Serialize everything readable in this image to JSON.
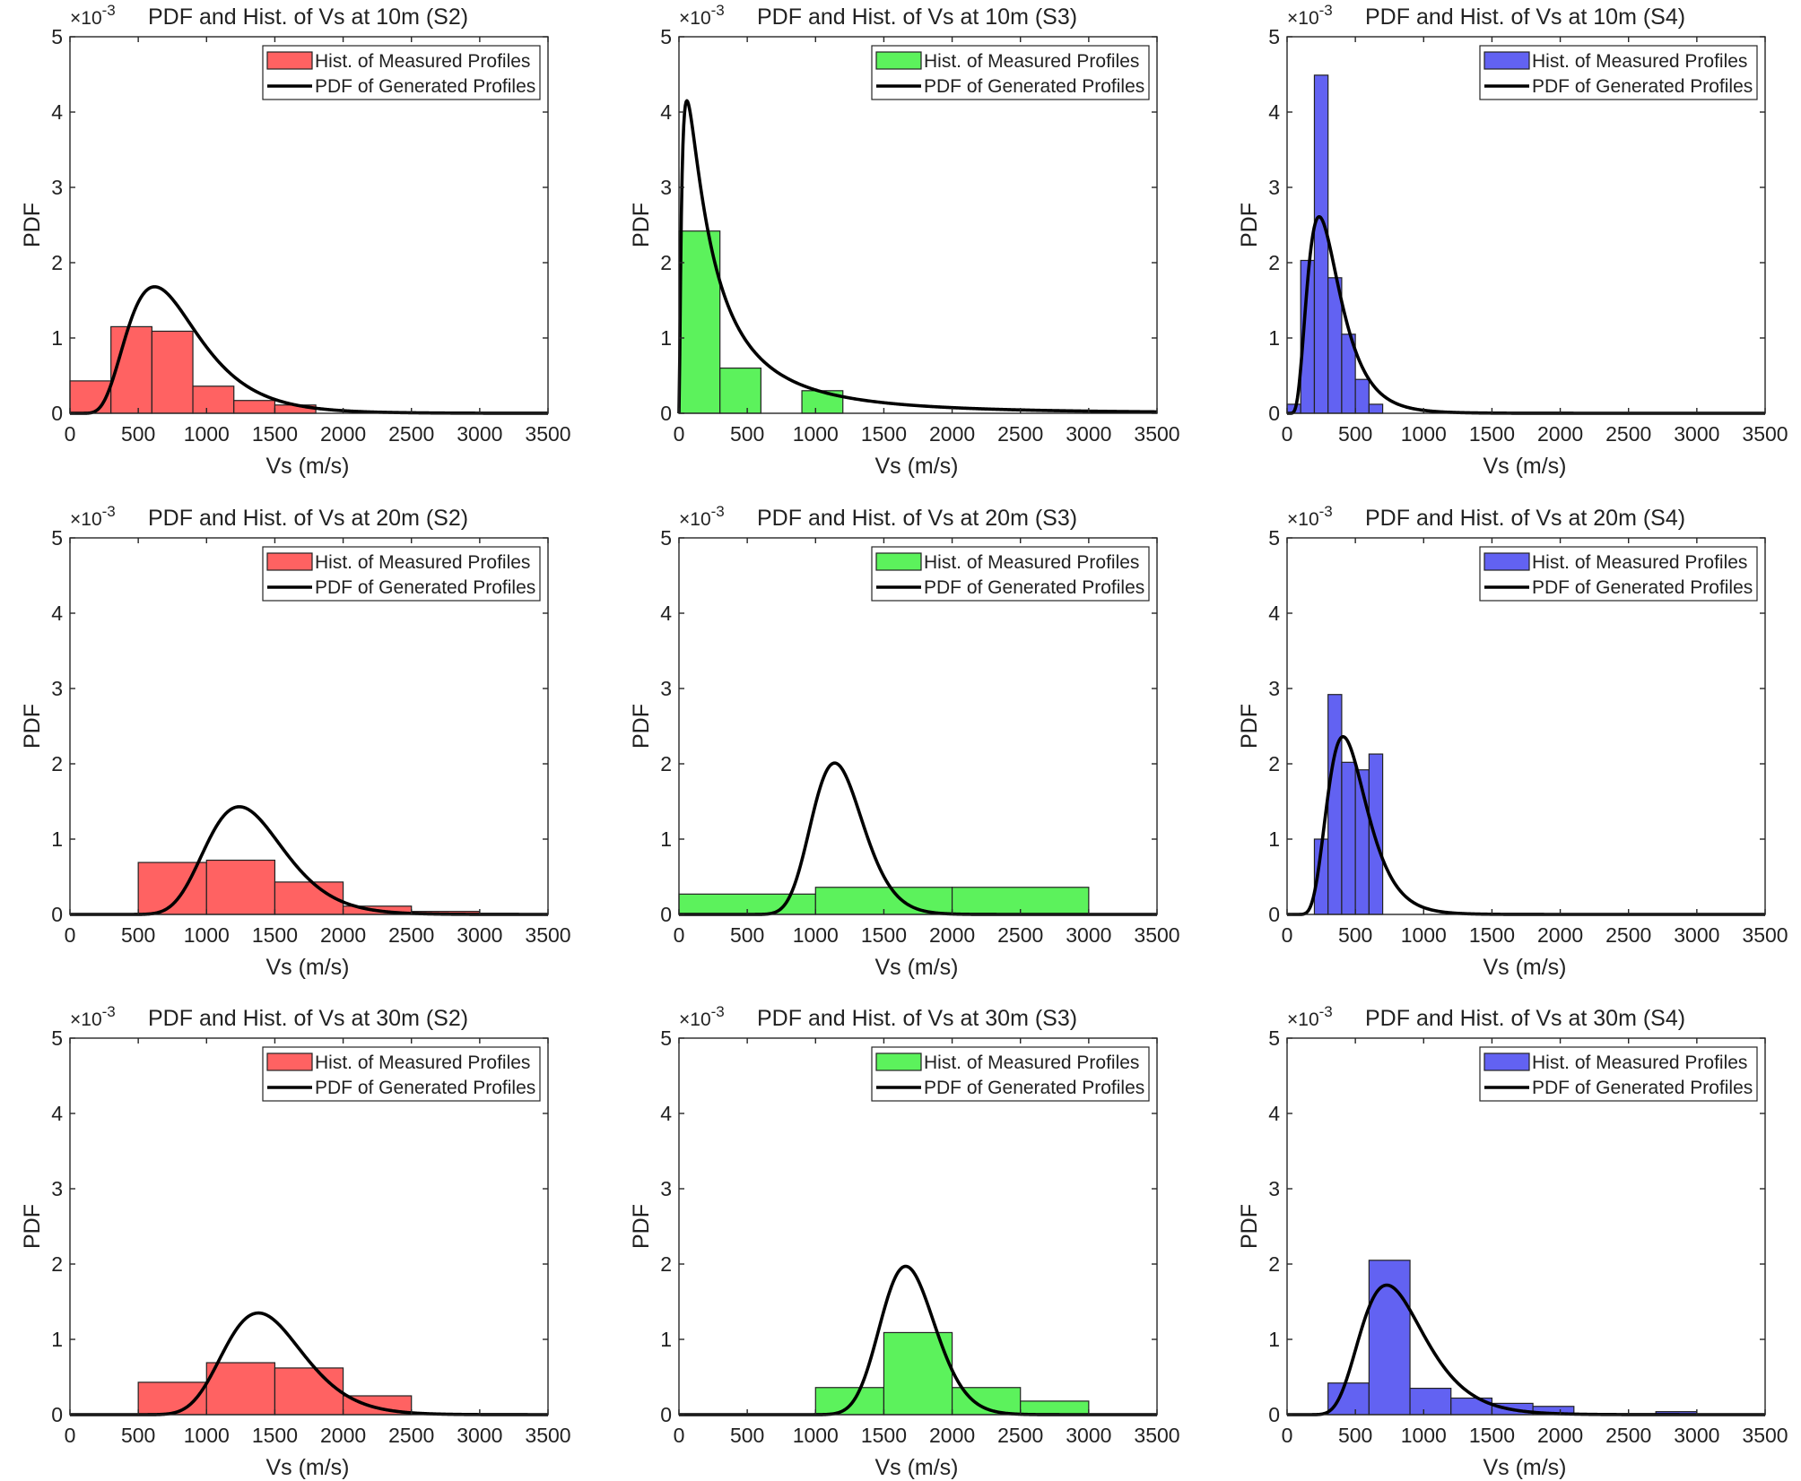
{
  "colors": {
    "S2": "#ff6262",
    "S3": "#5cf25c",
    "S4": "#6262f2",
    "curve": "#000000",
    "axis": "#262626"
  },
  "common": {
    "xlabel": "Vs (m/s)",
    "ylabel": "PDF",
    "exponent_base": "×10",
    "exponent_power": "-3",
    "legend_hist": "Hist. of Measured Profiles",
    "legend_pdf": "PDF of Generated Profiles",
    "legend_position": "top-right",
    "xticks": [
      0,
      500,
      1000,
      1500,
      2000,
      2500,
      3000,
      3500
    ],
    "yticks": [
      0,
      1,
      2,
      3,
      4,
      5
    ],
    "xlim": [
      0,
      3500
    ],
    "ylim": [
      0,
      5
    ]
  },
  "chart_data": [
    {
      "type": "bar+line",
      "title": "PDF and Hist. of Vs at 10m (S2)",
      "site": "S2",
      "xlabel": "Vs (m/s)",
      "ylabel": "PDF (×10^-3)",
      "xlim": [
        0,
        3500
      ],
      "ylim": [
        0,
        5
      ],
      "hist_bin_edges": [
        0,
        300,
        600,
        900,
        1200,
        1500,
        1800
      ],
      "hist_values": [
        0.43,
        1.15,
        1.09,
        0.36,
        0.17,
        0.11
      ],
      "pdf_curve": {
        "distribution": "lognormal",
        "mode": 620,
        "peak": 1.68,
        "shape": 0.42
      }
    },
    {
      "type": "bar+line",
      "title": "PDF and Hist. of Vs at 10m (S3)",
      "site": "S3",
      "xlabel": "Vs (m/s)",
      "ylabel": "PDF (×10^-3)",
      "xlim": [
        0,
        3500
      ],
      "ylim": [
        0,
        5
      ],
      "hist_bin_edges": [
        0,
        300,
        600,
        900,
        1200
      ],
      "hist_values": [
        2.42,
        0.6,
        0.0,
        0.3
      ],
      "pdf_curve": {
        "distribution": "lognormal",
        "mode": 58,
        "peak": 4.15,
        "shape": 1.25
      }
    },
    {
      "type": "bar+line",
      "title": "PDF and Hist. of Vs at 10m (S4)",
      "site": "S4",
      "xlabel": "Vs (m/s)",
      "ylabel": "PDF (×10^-3)",
      "xlim": [
        0,
        3500
      ],
      "ylim": [
        0,
        5
      ],
      "hist_bin_edges": [
        0,
        100,
        200,
        300,
        400,
        500,
        600,
        700
      ],
      "hist_values": [
        0.12,
        2.03,
        4.49,
        1.8,
        1.05,
        0.45,
        0.12
      ],
      "pdf_curve": {
        "distribution": "lognormal",
        "mode": 235,
        "peak": 2.61,
        "shape": 0.5
      }
    },
    {
      "type": "bar+line",
      "title": "PDF and Hist. of Vs at 20m (S2)",
      "site": "S2",
      "xlabel": "Vs (m/s)",
      "ylabel": "PDF (×10^-3)",
      "xlim": [
        0,
        3500
      ],
      "ylim": [
        0,
        5
      ],
      "hist_bin_edges": [
        500,
        1000,
        1500,
        2000,
        2500,
        3000
      ],
      "hist_values": [
        0.69,
        0.72,
        0.43,
        0.11,
        0.04
      ],
      "pdf_curve": {
        "distribution": "lognormal",
        "mode": 1240,
        "peak": 1.43,
        "shape": 0.23
      }
    },
    {
      "type": "bar+line",
      "title": "PDF and Hist. of Vs at 20m (S3)",
      "site": "S3",
      "xlabel": "Vs (m/s)",
      "ylabel": "PDF (×10^-3)",
      "xlim": [
        0,
        3500
      ],
      "ylim": [
        0,
        5
      ],
      "hist_bin_edges": [
        0,
        1000,
        2000,
        3000
      ],
      "hist_values": [
        0.27,
        0.36,
        0.36
      ],
      "pdf_curve": {
        "distribution": "lognormal",
        "mode": 1140,
        "peak": 2.01,
        "shape": 0.165
      }
    },
    {
      "type": "bar+line",
      "title": "PDF and Hist. of Vs at 20m (S4)",
      "site": "S4",
      "xlabel": "Vs (m/s)",
      "ylabel": "PDF (×10^-3)",
      "xlim": [
        0,
        3500
      ],
      "ylim": [
        0,
        5
      ],
      "hist_bin_edges": [
        200,
        300,
        400,
        500,
        600,
        700
      ],
      "hist_values": [
        1.0,
        2.92,
        2.02,
        1.92,
        2.13
      ],
      "pdf_curve": {
        "distribution": "lognormal",
        "mode": 410,
        "peak": 2.36,
        "shape": 0.35
      }
    },
    {
      "type": "bar+line",
      "title": "PDF and Hist. of Vs at 30m (S2)",
      "site": "S2",
      "xlabel": "Vs (m/s)",
      "ylabel": "PDF (×10^-3)",
      "xlim": [
        0,
        3500
      ],
      "ylim": [
        0,
        5
      ],
      "hist_bin_edges": [
        500,
        1000,
        1500,
        2000,
        2500
      ],
      "hist_values": [
        0.43,
        0.69,
        0.62,
        0.25
      ],
      "pdf_curve": {
        "distribution": "lognormal",
        "mode": 1380,
        "peak": 1.35,
        "shape": 0.21
      }
    },
    {
      "type": "bar+line",
      "title": "PDF and Hist. of Vs at 30m (S3)",
      "site": "S3",
      "xlabel": "Vs (m/s)",
      "ylabel": "PDF (×10^-3)",
      "xlim": [
        0,
        3500
      ],
      "ylim": [
        0,
        5
      ],
      "hist_bin_edges": [
        1000,
        1500,
        2000,
        2500,
        3000
      ],
      "hist_values": [
        0.36,
        1.09,
        0.36,
        0.18
      ],
      "pdf_curve": {
        "distribution": "lognormal",
        "mode": 1660,
        "peak": 1.97,
        "shape": 0.12
      }
    },
    {
      "type": "bar+line",
      "title": "PDF and Hist. of Vs at 30m (S4)",
      "site": "S4",
      "xlabel": "Vs (m/s)",
      "ylabel": "PDF (×10^-3)",
      "xlim": [
        0,
        3500
      ],
      "ylim": [
        0,
        5
      ],
      "hist_bin_edges": [
        300,
        600,
        900,
        1200,
        1500,
        1800,
        2100,
        2400,
        2700,
        3000
      ],
      "hist_values": [
        0.42,
        2.05,
        0.35,
        0.22,
        0.15,
        0.11,
        0.0,
        0.0,
        0.04
      ],
      "pdf_curve": {
        "distribution": "lognormal",
        "mode": 730,
        "peak": 1.72,
        "shape": 0.32
      }
    }
  ]
}
